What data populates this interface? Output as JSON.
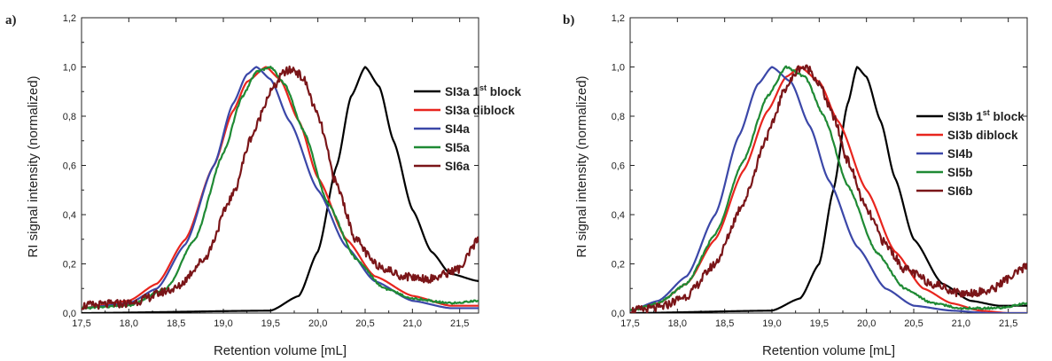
{
  "chart_data": [
    {
      "type": "line",
      "panel_label": "a)",
      "xlabel": "Retention volume [mL]",
      "ylabel": "RI signal intensity (normalized)",
      "xlim": [
        17.5,
        21.7
      ],
      "ylim": [
        0.0,
        1.2
      ],
      "xticks": [
        "17,5",
        "18,0",
        "18,5",
        "19,0",
        "19,5",
        "20,0",
        "20,5",
        "21,0",
        "21,5"
      ],
      "yticks": [
        "0,0",
        "0,2",
        "0,4",
        "0,6",
        "0,8",
        "1,0",
        "1,2"
      ],
      "legend_position": "right",
      "series": [
        {
          "name": "SI3a 1st block",
          "label_main": "SI3a 1",
          "label_sup": "st",
          "label_tail": " block",
          "color": "#000000",
          "x": [
            17.5,
            19.5,
            19.8,
            20.0,
            20.2,
            20.35,
            20.5,
            20.65,
            20.8,
            21.0,
            21.2,
            21.4,
            21.7
          ],
          "y": [
            0.0,
            0.01,
            0.07,
            0.25,
            0.6,
            0.88,
            1.0,
            0.92,
            0.7,
            0.42,
            0.25,
            0.16,
            0.13
          ]
        },
        {
          "name": "SI3a diblock",
          "color": "#e8251e",
          "x": [
            17.5,
            18.0,
            18.3,
            18.6,
            18.9,
            19.1,
            19.25,
            19.45,
            19.6,
            19.8,
            20.0,
            20.3,
            20.6,
            21.0,
            21.4,
            21.7
          ],
          "y": [
            0.02,
            0.05,
            0.12,
            0.3,
            0.6,
            0.82,
            0.94,
            1.0,
            0.95,
            0.78,
            0.55,
            0.3,
            0.15,
            0.07,
            0.03,
            0.03
          ]
        },
        {
          "name": "SI4a",
          "color": "#3b47a8",
          "x": [
            17.5,
            18.0,
            18.3,
            18.6,
            18.9,
            19.1,
            19.25,
            19.35,
            19.5,
            19.7,
            20.0,
            20.3,
            20.6,
            21.0,
            21.4,
            21.7
          ],
          "y": [
            0.02,
            0.04,
            0.1,
            0.28,
            0.6,
            0.85,
            0.97,
            1.0,
            0.95,
            0.78,
            0.5,
            0.27,
            0.13,
            0.05,
            0.02,
            0.02
          ]
        },
        {
          "name": "SI5a",
          "color": "#1f8a34",
          "x": [
            17.5,
            18.0,
            18.4,
            18.7,
            19.0,
            19.2,
            19.35,
            19.5,
            19.65,
            19.85,
            20.1,
            20.4,
            20.7,
            21.0,
            21.4,
            21.7
          ],
          "y": [
            0.02,
            0.03,
            0.1,
            0.3,
            0.65,
            0.88,
            0.98,
            1.0,
            0.93,
            0.74,
            0.45,
            0.22,
            0.1,
            0.06,
            0.04,
            0.05
          ]
        },
        {
          "name": "SI6a",
          "color": "#7a1518",
          "x": [
            17.5,
            18.0,
            18.5,
            18.8,
            19.1,
            19.3,
            19.5,
            19.65,
            19.75,
            19.85,
            20.0,
            20.2,
            20.4,
            20.6,
            20.9,
            21.2,
            21.5,
            21.7
          ],
          "y": [
            0.03,
            0.04,
            0.1,
            0.22,
            0.48,
            0.72,
            0.9,
            0.98,
            0.99,
            0.95,
            0.8,
            0.52,
            0.3,
            0.2,
            0.15,
            0.14,
            0.18,
            0.3
          ]
        }
      ]
    },
    {
      "type": "line",
      "panel_label": "b)",
      "xlabel": "Retention volume [mL]",
      "ylabel": "RI signal intensity (normalized)",
      "xlim": [
        17.5,
        21.7
      ],
      "ylim": [
        0.0,
        1.2
      ],
      "xticks": [
        "17,5",
        "18,0",
        "18,5",
        "19,0",
        "19,5",
        "20,0",
        "20,5",
        "21,0",
        "21,5"
      ],
      "yticks": [
        "0,0",
        "0,2",
        "0,4",
        "0,6",
        "0,8",
        "1,0",
        "1,2"
      ],
      "legend_position": "right",
      "series": [
        {
          "name": "SI3b 1st block",
          "label_main": "SI3b 1",
          "label_sup": "st",
          "label_tail": " block",
          "color": "#000000",
          "x": [
            17.5,
            19.0,
            19.3,
            19.5,
            19.65,
            19.8,
            19.9,
            20.0,
            20.15,
            20.3,
            20.5,
            20.8,
            21.1,
            21.4,
            21.7
          ],
          "y": [
            0.0,
            0.01,
            0.06,
            0.2,
            0.5,
            0.85,
            1.0,
            0.96,
            0.78,
            0.55,
            0.3,
            0.12,
            0.05,
            0.03,
            0.03
          ]
        },
        {
          "name": "SI3b diblock",
          "color": "#e8251e",
          "x": [
            17.5,
            17.8,
            18.1,
            18.4,
            18.7,
            18.95,
            19.15,
            19.3,
            19.5,
            19.7,
            20.0,
            20.3,
            20.6,
            20.9,
            21.2,
            21.5,
            21.7
          ],
          "y": [
            0.01,
            0.04,
            0.12,
            0.3,
            0.58,
            0.82,
            0.96,
            1.0,
            0.94,
            0.78,
            0.5,
            0.25,
            0.1,
            0.04,
            0.01,
            0.0,
            0.0
          ]
        },
        {
          "name": "SI4b",
          "color": "#3b47a8",
          "x": [
            17.5,
            17.8,
            18.1,
            18.4,
            18.65,
            18.85,
            19.0,
            19.2,
            19.4,
            19.6,
            19.9,
            20.2,
            20.5,
            20.9,
            21.3,
            21.7
          ],
          "y": [
            0.01,
            0.05,
            0.15,
            0.4,
            0.72,
            0.93,
            1.0,
            0.94,
            0.76,
            0.54,
            0.27,
            0.1,
            0.03,
            0.01,
            0.0,
            0.0
          ]
        },
        {
          "name": "SI5b",
          "color": "#1f8a34",
          "x": [
            17.5,
            17.8,
            18.1,
            18.4,
            18.7,
            18.95,
            19.15,
            19.35,
            19.55,
            19.8,
            20.1,
            20.4,
            20.7,
            21.0,
            21.4,
            21.7
          ],
          "y": [
            0.01,
            0.04,
            0.12,
            0.32,
            0.62,
            0.88,
            1.0,
            0.96,
            0.8,
            0.52,
            0.25,
            0.1,
            0.04,
            0.02,
            0.02,
            0.04
          ]
        },
        {
          "name": "SI6b",
          "color": "#7a1518",
          "x": [
            17.5,
            17.8,
            18.1,
            18.4,
            18.7,
            18.95,
            19.15,
            19.3,
            19.4,
            19.5,
            19.65,
            19.8,
            20.0,
            20.2,
            20.4,
            20.7,
            21.0,
            21.3,
            21.5,
            21.7
          ],
          "y": [
            0.01,
            0.02,
            0.07,
            0.2,
            0.45,
            0.72,
            0.92,
            1.0,
            0.99,
            0.93,
            0.8,
            0.62,
            0.42,
            0.28,
            0.18,
            0.12,
            0.08,
            0.09,
            0.14,
            0.19
          ]
        }
      ]
    }
  ]
}
